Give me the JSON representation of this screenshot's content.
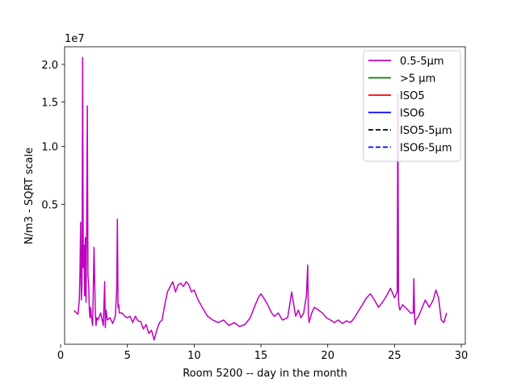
{
  "chart_data": {
    "type": "line",
    "title": "",
    "xlabel": "Room 5200 -- day in the month",
    "ylabel": "N/m3 - SQRT scale",
    "y_scale": "sqrt",
    "y_offset_label": "1e7",
    "xlim": [
      0.3,
      30.3
    ],
    "ylim": [
      0,
      22600000
    ],
    "x_ticks": [
      0,
      5,
      10,
      15,
      20,
      25,
      30
    ],
    "x_tick_labels": [
      "0",
      "5",
      "10",
      "15",
      "20",
      "25",
      "30"
    ],
    "y_ticks": [
      5000000,
      10000000,
      15000000,
      20000000
    ],
    "y_tick_labels": [
      "0.5",
      "1.0",
      "1.5",
      "2.0"
    ],
    "grid": false,
    "legend_placement": "top-right",
    "series": [
      {
        "name": "0.5-5µm",
        "color": "#bf00bf",
        "dash": "solid",
        "x": [
          1.0,
          1.3,
          1.4,
          1.45,
          1.5,
          1.55,
          1.6,
          1.65,
          1.7,
          1.75,
          1.8,
          1.85,
          1.9,
          1.95,
          2.0,
          2.05,
          2.1,
          2.15,
          2.2,
          2.25,
          2.3,
          2.4,
          2.5,
          2.6,
          2.65,
          2.7,
          2.8,
          3.0,
          3.2,
          3.3,
          3.35,
          3.4,
          3.5,
          3.7,
          3.9,
          4.1,
          4.2,
          4.25,
          4.3,
          4.35,
          4.4,
          4.6,
          4.8,
          5.0,
          5.2,
          5.4,
          5.6,
          5.8,
          6.0,
          6.2,
          6.4,
          6.6,
          6.8,
          7.0,
          7.2,
          7.4,
          7.6,
          7.8,
          8.0,
          8.2,
          8.4,
          8.6,
          8.8,
          9.0,
          9.2,
          9.4,
          9.6,
          9.8,
          10.0,
          10.3,
          10.6,
          11.0,
          11.4,
          11.8,
          12.2,
          12.6,
          13.0,
          13.4,
          13.8,
          14.2,
          14.5,
          14.8,
          15.0,
          15.2,
          15.5,
          15.8,
          16.0,
          16.3,
          16.6,
          17.0,
          17.3,
          17.6,
          17.8,
          18.0,
          18.2,
          18.4,
          18.5,
          18.55,
          18.6,
          18.8,
          19.0,
          19.3,
          19.6,
          19.9,
          20.2,
          20.5,
          20.8,
          21.1,
          21.4,
          21.7,
          22.0,
          22.3,
          22.6,
          22.9,
          23.2,
          23.5,
          23.8,
          24.1,
          24.4,
          24.7,
          25.0,
          25.2,
          25.25,
          25.3,
          25.35,
          25.4,
          25.6,
          25.8,
          26.0,
          26.2,
          26.4,
          26.45,
          26.5,
          26.55,
          26.6,
          26.8,
          27.0,
          27.3,
          27.6,
          27.9,
          28.1,
          28.3,
          28.5,
          28.7,
          28.9
        ],
        "y": [
          290000,
          230000,
          500000,
          1300000,
          3800000,
          500000,
          900000,
          21000000,
          1500000,
          2500000,
          600000,
          2900000,
          450000,
          4000000,
          14500000,
          1200000,
          900000,
          300000,
          180000,
          350000,
          200000,
          90000,
          2400000,
          250000,
          90000,
          180000,
          150000,
          250000,
          90000,
          1000000,
          70000,
          300000,
          150000,
          180000,
          110000,
          200000,
          800000,
          4000000,
          350000,
          400000,
          250000,
          250000,
          200000,
          180000,
          200000,
          120000,
          200000,
          140000,
          130000,
          60000,
          100000,
          30000,
          50000,
          5000,
          50000,
          120000,
          150000,
          400000,
          700000,
          850000,
          1000000,
          700000,
          900000,
          950000,
          850000,
          1000000,
          900000,
          700000,
          750000,
          500000,
          350000,
          200000,
          150000,
          120000,
          150000,
          90000,
          120000,
          80000,
          100000,
          180000,
          350000,
          550000,
          650000,
          550000,
          400000,
          250000,
          200000,
          250000,
          150000,
          180000,
          700000,
          200000,
          300000,
          180000,
          250000,
          600000,
          1600000,
          250000,
          120000,
          250000,
          350000,
          300000,
          250000,
          180000,
          150000,
          120000,
          150000,
          110000,
          140000,
          120000,
          180000,
          280000,
          400000,
          550000,
          650000,
          500000,
          350000,
          450000,
          600000,
          800000,
          550000,
          700000,
          16000000,
          500000,
          350000,
          300000,
          400000,
          350000,
          300000,
          250000,
          250000,
          1100000,
          200000,
          100000,
          150000,
          200000,
          300000,
          500000,
          350000,
          500000,
          750000,
          550000,
          150000,
          120000,
          250000
        ]
      }
    ],
    "legend": [
      {
        "label": "0.5-5µm",
        "color": "#bf00bf",
        "dash": "solid"
      },
      {
        "label": ">5 µm",
        "color": "#008000",
        "dash": "solid"
      },
      {
        "label": "ISO5",
        "color": "#ff0000",
        "dash": "solid"
      },
      {
        "label": "ISO6",
        "color": "#0000ff",
        "dash": "solid"
      },
      {
        "label": "ISO5-5µm",
        "color": "#000000",
        "dash": "dashed"
      },
      {
        "label": "ISO6-5µm",
        "color": "#0000ff",
        "dash": "dashed"
      }
    ]
  }
}
